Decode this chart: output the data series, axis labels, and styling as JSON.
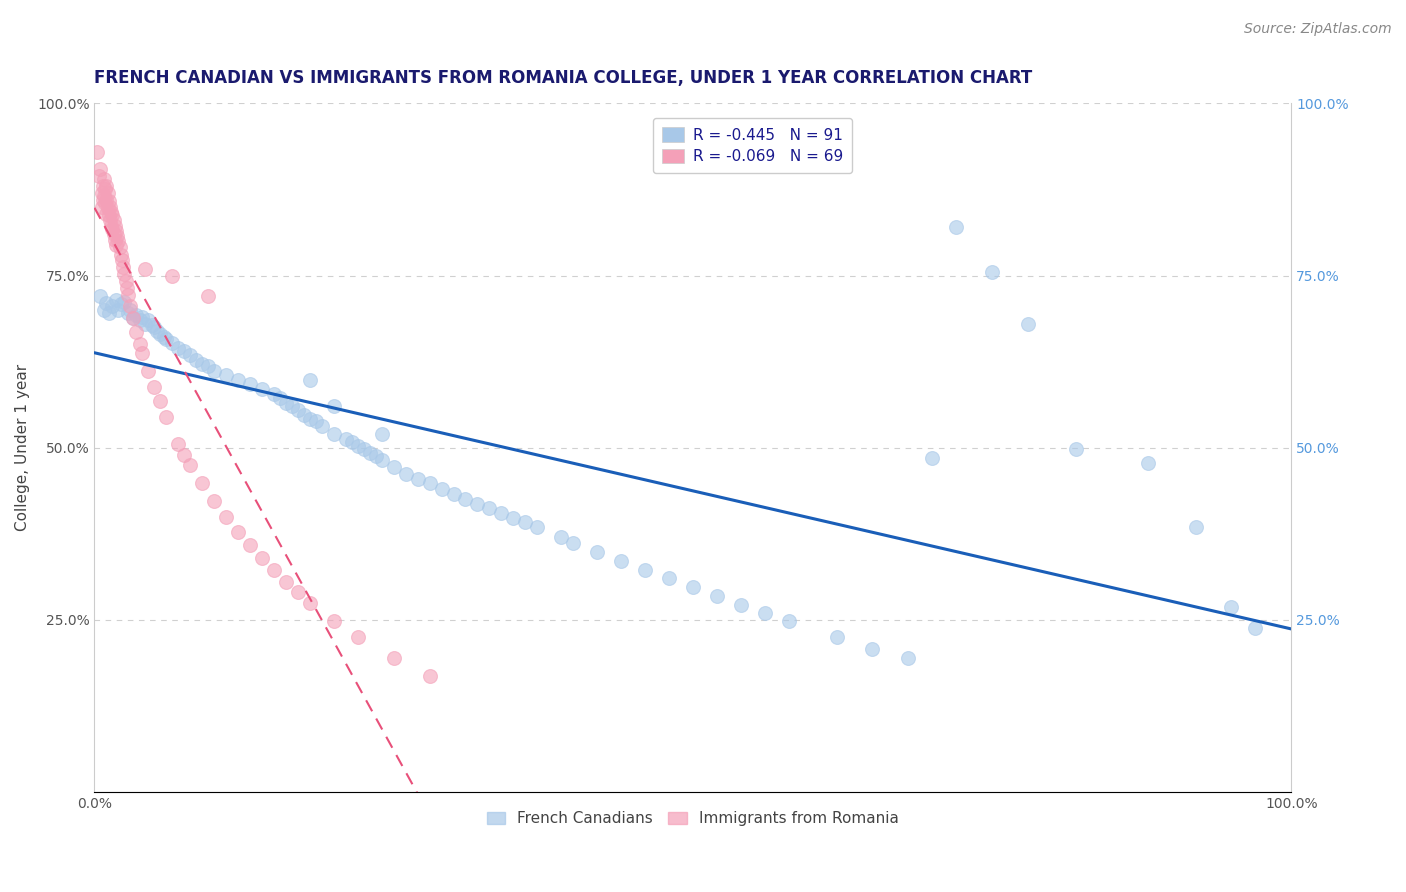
{
  "title": "FRENCH CANADIAN VS IMMIGRANTS FROM ROMANIA COLLEGE, UNDER 1 YEAR CORRELATION CHART",
  "source": "Source: ZipAtlas.com",
  "ylabel": "College, Under 1 year",
  "xlabel": "",
  "xlim": [
    0.0,
    1.0
  ],
  "ylim": [
    0.0,
    1.0
  ],
  "blue_R": "-0.445",
  "blue_N": "91",
  "pink_R": "-0.069",
  "pink_N": "69",
  "blue_color": "#a8c8e8",
  "pink_color": "#f4a0b8",
  "blue_line_color": "#1a5eb8",
  "pink_line_color": "#e8507a",
  "grid_color": "#d0d0d0",
  "legend_label_blue": "French Canadians",
  "legend_label_pink": "Immigrants from Romania",
  "background_color": "#ffffff",
  "blue_scatter_x": [
    0.005,
    0.008,
    0.01,
    0.012,
    0.015,
    0.018,
    0.02,
    0.022,
    0.025,
    0.028,
    0.03,
    0.032,
    0.035,
    0.038,
    0.04,
    0.042,
    0.045,
    0.048,
    0.05,
    0.052,
    0.055,
    0.058,
    0.06,
    0.065,
    0.07,
    0.075,
    0.08,
    0.085,
    0.09,
    0.095,
    0.1,
    0.11,
    0.12,
    0.13,
    0.14,
    0.15,
    0.155,
    0.16,
    0.165,
    0.17,
    0.175,
    0.18,
    0.185,
    0.19,
    0.2,
    0.21,
    0.215,
    0.22,
    0.225,
    0.23,
    0.235,
    0.24,
    0.25,
    0.26,
    0.27,
    0.28,
    0.29,
    0.3,
    0.31,
    0.32,
    0.33,
    0.34,
    0.35,
    0.36,
    0.37,
    0.39,
    0.4,
    0.42,
    0.44,
    0.46,
    0.48,
    0.5,
    0.52,
    0.54,
    0.56,
    0.58,
    0.62,
    0.65,
    0.68,
    0.7,
    0.72,
    0.75,
    0.78,
    0.82,
    0.88,
    0.92,
    0.95,
    0.97,
    0.18,
    0.2,
    0.24
  ],
  "blue_scatter_y": [
    0.72,
    0.7,
    0.71,
    0.695,
    0.705,
    0.715,
    0.7,
    0.708,
    0.712,
    0.695,
    0.7,
    0.688,
    0.692,
    0.685,
    0.69,
    0.68,
    0.685,
    0.678,
    0.675,
    0.67,
    0.665,
    0.66,
    0.658,
    0.652,
    0.645,
    0.64,
    0.635,
    0.628,
    0.622,
    0.618,
    0.612,
    0.605,
    0.598,
    0.592,
    0.585,
    0.578,
    0.572,
    0.565,
    0.56,
    0.555,
    0.548,
    0.542,
    0.538,
    0.532,
    0.52,
    0.512,
    0.508,
    0.502,
    0.498,
    0.492,
    0.488,
    0.482,
    0.472,
    0.462,
    0.455,
    0.448,
    0.44,
    0.432,
    0.425,
    0.418,
    0.412,
    0.405,
    0.398,
    0.392,
    0.385,
    0.37,
    0.362,
    0.348,
    0.335,
    0.322,
    0.31,
    0.298,
    0.285,
    0.272,
    0.26,
    0.248,
    0.225,
    0.208,
    0.195,
    0.485,
    0.82,
    0.755,
    0.68,
    0.498,
    0.478,
    0.385,
    0.268,
    0.238,
    0.598,
    0.56,
    0.52
  ],
  "pink_scatter_x": [
    0.002,
    0.004,
    0.005,
    0.006,
    0.006,
    0.007,
    0.007,
    0.008,
    0.008,
    0.009,
    0.009,
    0.01,
    0.01,
    0.01,
    0.011,
    0.011,
    0.012,
    0.012,
    0.013,
    0.013,
    0.014,
    0.014,
    0.015,
    0.015,
    0.016,
    0.016,
    0.017,
    0.017,
    0.018,
    0.018,
    0.019,
    0.02,
    0.021,
    0.022,
    0.023,
    0.024,
    0.025,
    0.026,
    0.027,
    0.028,
    0.03,
    0.032,
    0.035,
    0.038,
    0.04,
    0.045,
    0.05,
    0.055,
    0.06,
    0.07,
    0.075,
    0.08,
    0.09,
    0.1,
    0.11,
    0.12,
    0.13,
    0.14,
    0.15,
    0.16,
    0.17,
    0.18,
    0.2,
    0.22,
    0.25,
    0.28,
    0.042,
    0.065,
    0.095
  ],
  "pink_scatter_y": [
    0.93,
    0.895,
    0.905,
    0.87,
    0.85,
    0.88,
    0.86,
    0.89,
    0.865,
    0.875,
    0.855,
    0.88,
    0.86,
    0.84,
    0.87,
    0.848,
    0.858,
    0.838,
    0.85,
    0.83,
    0.842,
    0.822,
    0.838,
    0.818,
    0.83,
    0.81,
    0.822,
    0.802,
    0.815,
    0.795,
    0.808,
    0.8,
    0.792,
    0.78,
    0.772,
    0.762,
    0.752,
    0.742,
    0.732,
    0.722,
    0.705,
    0.688,
    0.668,
    0.65,
    0.638,
    0.612,
    0.588,
    0.568,
    0.545,
    0.505,
    0.49,
    0.475,
    0.448,
    0.422,
    0.4,
    0.378,
    0.358,
    0.34,
    0.322,
    0.305,
    0.29,
    0.275,
    0.248,
    0.225,
    0.195,
    0.168,
    0.76,
    0.75,
    0.72
  ],
  "title_fontsize": 12,
  "source_fontsize": 10,
  "axis_label_fontsize": 11,
  "tick_fontsize": 10,
  "legend_fontsize": 11
}
